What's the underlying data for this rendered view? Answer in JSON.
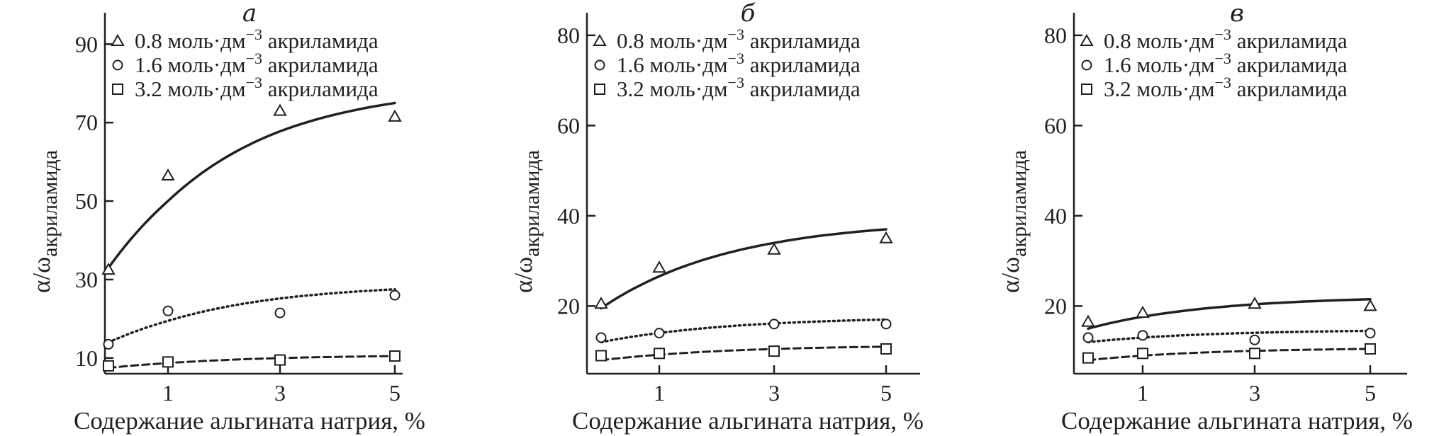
{
  "chart_data": [
    {
      "type": "scatter",
      "panel": "a",
      "xlabel": "Содержание альгината натрия, %",
      "ylabel": "α/ω",
      "ylabel_sub": "акриламида",
      "xlim": [
        0,
        5.5
      ],
      "ylim": [
        6,
        98
      ],
      "xticks": [
        1,
        3,
        5
      ],
      "yticks": [
        10,
        30,
        50,
        70,
        90
      ],
      "series": [
        {
          "name": "0.8 моль·дм−3 акриламида",
          "marker": "triangle",
          "line": "solid",
          "x": [
            0,
            1,
            3,
            5
          ],
          "y": [
            32.5,
            56.5,
            73,
            71.5
          ],
          "fit_start": 33,
          "fit_end": 75
        },
        {
          "name": "1.6 моль·дм−3 акриламида",
          "marker": "circle",
          "line": "dotted",
          "x": [
            0,
            1,
            3,
            5
          ],
          "y": [
            13.5,
            22,
            21.5,
            26
          ],
          "fit_start": 14,
          "fit_end": 27.5
        },
        {
          "name": "3.2 моль·дм−3 акриламида",
          "marker": "square",
          "line": "dashed",
          "x": [
            0,
            1,
            3,
            5
          ],
          "y": [
            8,
            9,
            9.5,
            10.5
          ],
          "fit_start": 7.5,
          "fit_end": 10.5
        }
      ]
    },
    {
      "type": "scatter",
      "panel": "б",
      "xlabel": "Содержание альгината натрия, %",
      "ylabel": "α/ω",
      "ylabel_sub": "акриламида",
      "xlim": [
        0,
        5.5
      ],
      "ylim": [
        5,
        85
      ],
      "xticks": [
        1,
        3,
        5
      ],
      "yticks": [
        20,
        40,
        60,
        80
      ],
      "series": [
        {
          "name": "0.8 моль·дм−3 акриламида",
          "marker": "triangle",
          "line": "solid",
          "x": [
            0,
            1,
            3,
            5
          ],
          "y": [
            20.5,
            28.5,
            32.5,
            35
          ],
          "fit_start": 19.5,
          "fit_end": 37
        },
        {
          "name": "1.6 моль·дм−3 акриламида",
          "marker": "circle",
          "line": "dotted",
          "x": [
            0,
            1,
            3,
            5
          ],
          "y": [
            13,
            14,
            16,
            16
          ],
          "fit_start": 12,
          "fit_end": 17
        },
        {
          "name": "3.2 моль·дм−3 акриламида",
          "marker": "square",
          "line": "dashed",
          "x": [
            0,
            1,
            3,
            5
          ],
          "y": [
            9,
            9.5,
            10,
            10.5
          ],
          "fit_start": 8,
          "fit_end": 11
        }
      ]
    },
    {
      "type": "scatter",
      "panel": "в",
      "xlabel": "Содержание альгината натрия, %",
      "ylabel": "α/ω",
      "ylabel_sub": "акриламида",
      "xlim": [
        0,
        5.5
      ],
      "ylim": [
        5,
        85
      ],
      "xticks": [
        1,
        3,
        5
      ],
      "yticks": [
        20,
        40,
        60,
        80
      ],
      "series": [
        {
          "name": "0.8 моль·дм−3 акриламида",
          "marker": "triangle",
          "line": "solid",
          "x": [
            0,
            1,
            3,
            5
          ],
          "y": [
            16.5,
            18.5,
            20.5,
            20
          ],
          "fit_start": 15,
          "fit_end": 21.5
        },
        {
          "name": "1.6 моль·дм−3 акриламида",
          "marker": "circle",
          "line": "dotted",
          "x": [
            0,
            1,
            3,
            5
          ],
          "y": [
            13,
            13.5,
            12.5,
            14
          ],
          "fit_start": 12,
          "fit_end": 14.5
        },
        {
          "name": "3.2  моль·дм−3 акриламида",
          "marker": "square",
          "line": "dashed",
          "x": [
            0,
            1,
            3,
            5
          ],
          "y": [
            8.5,
            9.5,
            9.5,
            10.5
          ],
          "fit_start": 8,
          "fit_end": 10.5
        }
      ]
    }
  ]
}
